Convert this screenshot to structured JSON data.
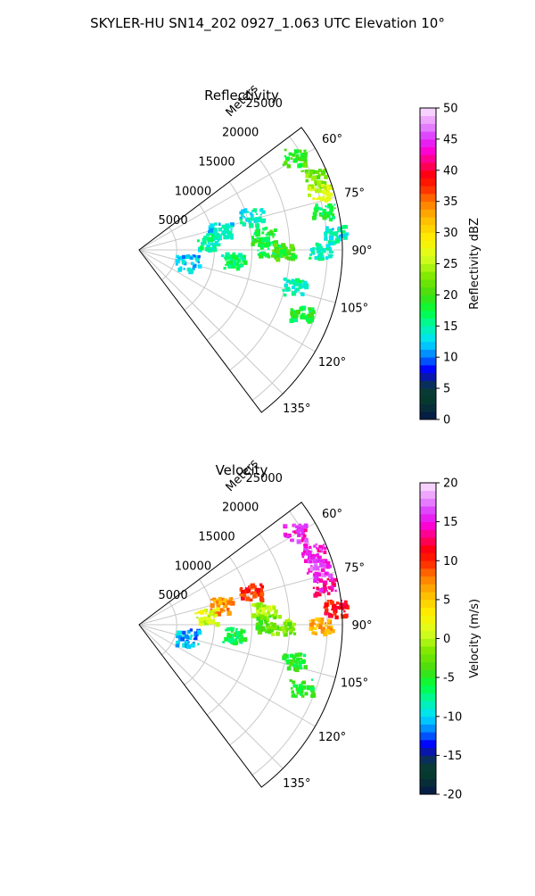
{
  "figure": {
    "suptitle": "SKYLER-HU  SN14_202  0927_1.063 UTC Elevation 10°"
  },
  "chart_data": [
    {
      "type": "polar-sector",
      "title": "Reflectivity",
      "radial_label": "Meters",
      "radial_ticks": [
        5000,
        10000,
        15000,
        20000,
        25000
      ],
      "radial_range": [
        0,
        27000
      ],
      "azimuth_ticks_deg": [
        60,
        75,
        90,
        105,
        120,
        135
      ],
      "azimuth_range_deg": [
        53,
        143
      ],
      "grid": true,
      "colorbar": {
        "label": "Reflectivity dBZ",
        "range": [
          0,
          50
        ],
        "ticks": [
          0,
          5,
          10,
          15,
          20,
          25,
          30,
          35,
          40,
          45,
          50
        ]
      },
      "echoes": [
        {
          "az": 59,
          "r": 24000,
          "value": 20
        },
        {
          "az": 67,
          "r": 25000,
          "value": 22
        },
        {
          "az": 72,
          "r": 25000,
          "value": 26
        },
        {
          "az": 78,
          "r": 25000,
          "value": 17
        },
        {
          "az": 85,
          "r": 26000,
          "value": 14
        },
        {
          "az": 73,
          "r": 15500,
          "value": 14
        },
        {
          "az": 76,
          "r": 11000,
          "value": 13
        },
        {
          "az": 82,
          "r": 9000,
          "value": 15
        },
        {
          "az": 83,
          "r": 16500,
          "value": 18
        },
        {
          "az": 89,
          "r": 17000,
          "value": 17
        },
        {
          "az": 90,
          "r": 19000,
          "value": 20
        },
        {
          "az": 96,
          "r": 12500,
          "value": 16
        },
        {
          "az": 104,
          "r": 6500,
          "value": 12
        },
        {
          "az": 103,
          "r": 21000,
          "value": 15
        },
        {
          "az": 111,
          "r": 23000,
          "value": 18
        },
        {
          "az": 90,
          "r": 24000,
          "value": 15
        }
      ]
    },
    {
      "type": "polar-sector",
      "title": "Velocity",
      "radial_label": "Meters",
      "radial_ticks": [
        5000,
        10000,
        15000,
        20000,
        25000
      ],
      "radial_range": [
        0,
        27000
      ],
      "azimuth_ticks_deg": [
        60,
        75,
        90,
        105,
        120,
        135
      ],
      "azimuth_range_deg": [
        53,
        143
      ],
      "grid": true,
      "colorbar": {
        "label": "Velocity (m/s)",
        "range": [
          -20,
          20
        ],
        "ticks": [
          -20,
          -15,
          -10,
          -5,
          0,
          5,
          10,
          15,
          20
        ]
      },
      "echoes": [
        {
          "az": 59,
          "r": 24000,
          "value": 15
        },
        {
          "az": 67,
          "r": 25000,
          "value": 15
        },
        {
          "az": 72,
          "r": 25000,
          "value": 16
        },
        {
          "az": 78,
          "r": 25000,
          "value": 14
        },
        {
          "az": 85,
          "r": 26000,
          "value": 11
        },
        {
          "az": 73,
          "r": 15500,
          "value": 10
        },
        {
          "az": 76,
          "r": 11000,
          "value": 7
        },
        {
          "az": 82,
          "r": 9000,
          "value": 1
        },
        {
          "az": 83,
          "r": 16500,
          "value": 0
        },
        {
          "az": 89,
          "r": 17000,
          "value": -3
        },
        {
          "az": 90,
          "r": 19000,
          "value": -2
        },
        {
          "az": 96,
          "r": 12500,
          "value": -6
        },
        {
          "az": 104,
          "r": 6500,
          "value": -11
        },
        {
          "az": 103,
          "r": 21000,
          "value": -5
        },
        {
          "az": 111,
          "r": 23000,
          "value": -5
        },
        {
          "az": 90,
          "r": 24000,
          "value": 6
        }
      ]
    }
  ]
}
